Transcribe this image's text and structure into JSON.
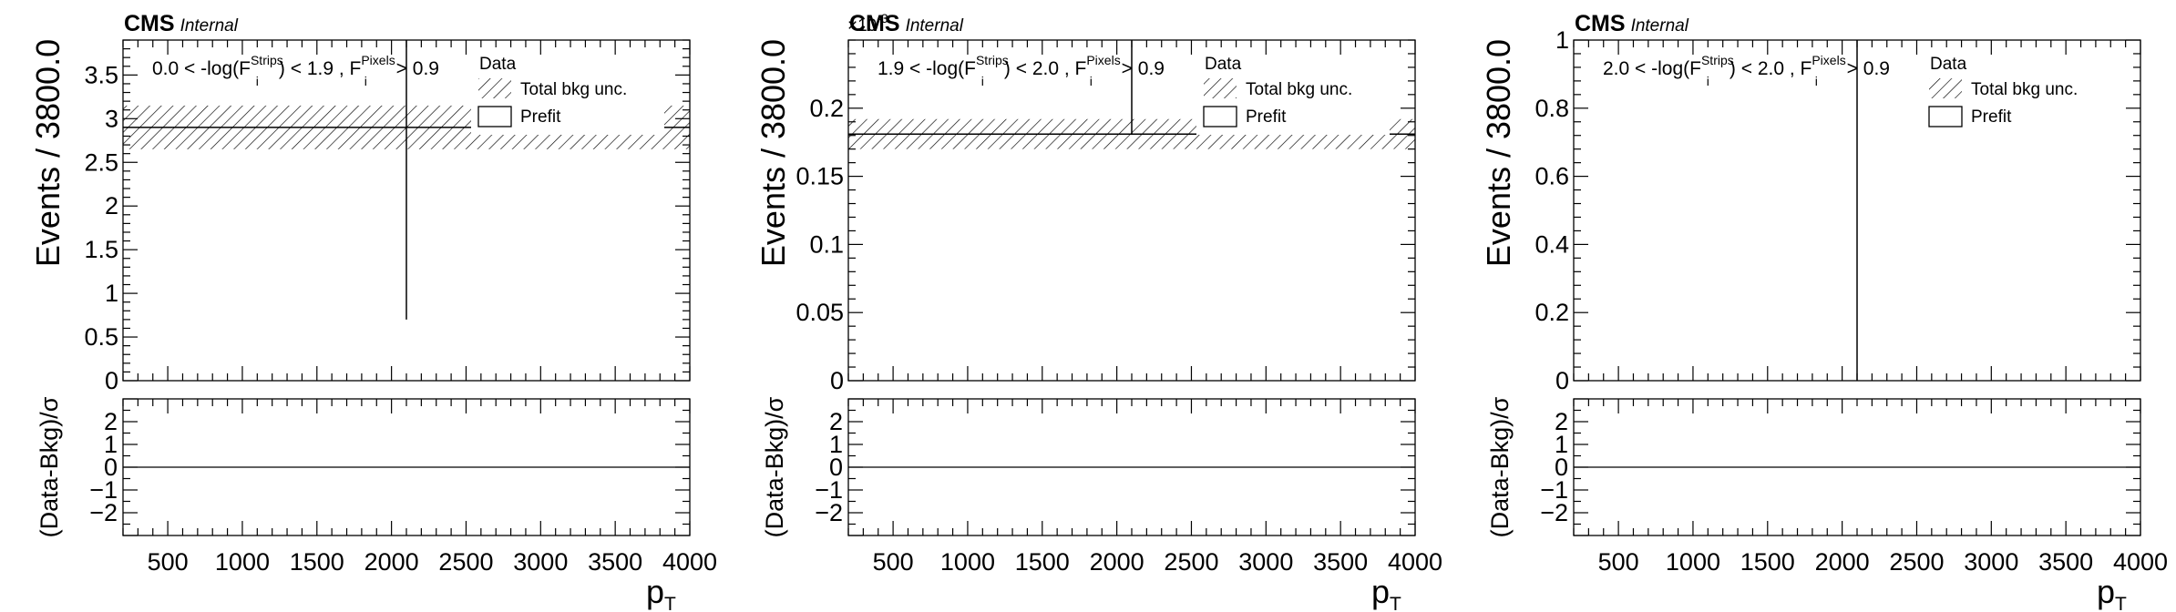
{
  "colors": {
    "axis": "#000000",
    "band_hatch": "#000000",
    "background": "#ffffff"
  },
  "chart_data": [
    {
      "type": "line",
      "experiment": "CMS",
      "experiment_tag": "Internal",
      "selection": {
        "prefix": "0.0 < -log(F",
        "sup1": "Strips",
        "sub1": "i",
        "middle": ") < 1.9 , F",
        "sup2": "Pixels",
        "sub2": "i",
        "suffix": " > 0.9"
      },
      "ylabel": "Events / 3800.0",
      "xlabel": {
        "main": "p",
        "sub": "T"
      },
      "ratio_ylabel": "(Data-Bkg)/σ",
      "exponent_label": "",
      "xlim": [
        200,
        4000
      ],
      "ylim": [
        0,
        3.9
      ],
      "yticks": [
        0,
        0.5,
        1,
        1.5,
        2,
        2.5,
        3,
        3.5
      ],
      "ytick_labels": [
        "0",
        "0.5",
        "1",
        "1.5",
        "2",
        "2.5",
        "3",
        "3.5"
      ],
      "xticks": [
        500,
        1000,
        1500,
        2000,
        2500,
        3000,
        3500,
        4000
      ],
      "xtick_labels": [
        "500",
        "1000",
        "1500",
        "2000",
        "2500",
        "3000",
        "3500",
        "4000"
      ],
      "ratio_ylim": [
        -3,
        3
      ],
      "ratio_yticks": [
        -2,
        -1,
        0,
        1,
        2
      ],
      "ratio_ytick_labels": [
        "−2",
        "−1",
        "0",
        "1",
        "2"
      ],
      "bins": [
        200,
        4000
      ],
      "prefit": [
        2.9
      ],
      "bkg_unc": [
        [
          2.65,
          3.15
        ]
      ],
      "data_x": 2100,
      "data_err": [
        0.7,
        3.9
      ],
      "ratio_values": [
        0
      ],
      "legend": {
        "data": "Data",
        "unc": "Total bkg unc.",
        "prefit": "Prefit",
        "position": "top-right"
      }
    },
    {
      "type": "line",
      "experiment": "CMS",
      "experiment_tag": "Internal",
      "selection": {
        "prefix": "1.9 < -log(F",
        "sup1": "Strips",
        "sub1": "i",
        "middle": ") < 2.0 , F",
        "sup2": "Pixels",
        "sub2": "i",
        "suffix": " > 0.9"
      },
      "ylabel": "Events / 3800.0",
      "xlabel": {
        "main": "p",
        "sub": "T"
      },
      "ratio_ylabel": "(Data-Bkg)/σ",
      "exponent_label": "×10",
      "exponent_power": "-3",
      "xlim": [
        200,
        4000
      ],
      "ylim": [
        0,
        0.25
      ],
      "yticks": [
        0,
        0.05,
        0.1,
        0.15,
        0.2
      ],
      "ytick_labels": [
        "0",
        "0.05",
        "0.1",
        "0.15",
        "0.2"
      ],
      "xticks": [
        500,
        1000,
        1500,
        2000,
        2500,
        3000,
        3500,
        4000
      ],
      "xtick_labels": [
        "500",
        "1000",
        "1500",
        "2000",
        "2500",
        "3000",
        "3500",
        "4000"
      ],
      "ratio_ylim": [
        -3,
        3
      ],
      "ratio_yticks": [
        -2,
        -1,
        0,
        1,
        2
      ],
      "ratio_ytick_labels": [
        "−2",
        "−1",
        "0",
        "1",
        "2"
      ],
      "bins": [
        200,
        4000
      ],
      "prefit": [
        0.181
      ],
      "bkg_unc": [
        [
          0.17,
          0.192
        ]
      ],
      "data_x": 2100,
      "data_err": [
        0.181,
        0.25
      ],
      "ratio_values": [
        0
      ],
      "legend": {
        "data": "Data",
        "unc": "Total bkg unc.",
        "prefit": "Prefit",
        "position": "top-right"
      }
    },
    {
      "type": "line",
      "experiment": "CMS",
      "experiment_tag": "Internal",
      "selection": {
        "prefix": "2.0 < -log(F",
        "sup1": "Strips",
        "sub1": "i",
        "middle": ") < 2.0 , F",
        "sup2": "Pixels",
        "sub2": "i",
        "suffix": " > 0.9"
      },
      "ylabel": "Events / 3800.0",
      "xlabel": {
        "main": "p",
        "sub": "T"
      },
      "ratio_ylabel": "(Data-Bkg)/σ",
      "exponent_label": "",
      "xlim": [
        200,
        4000
      ],
      "ylim": [
        0,
        1
      ],
      "yticks": [
        0,
        0.2,
        0.4,
        0.6,
        0.8,
        1
      ],
      "ytick_labels": [
        "0",
        "0.2",
        "0.4",
        "0.6",
        "0.8",
        "1"
      ],
      "xticks": [
        500,
        1000,
        1500,
        2000,
        2500,
        3000,
        3500,
        4000
      ],
      "xtick_labels": [
        "500",
        "1000",
        "1500",
        "2000",
        "2500",
        "3000",
        "3500",
        "4000"
      ],
      "ratio_ylim": [
        -3,
        3
      ],
      "ratio_yticks": [
        -2,
        -1,
        0,
        1,
        2
      ],
      "ratio_ytick_labels": [
        "−2",
        "−1",
        "0",
        "1",
        "2"
      ],
      "bins": [
        200,
        4000
      ],
      "prefit": [],
      "bkg_unc": [],
      "data_x": 2100,
      "data_err": [
        0,
        1
      ],
      "ratio_values": [
        0
      ],
      "legend": {
        "data": "Data",
        "unc": "Total bkg unc.",
        "prefit": "Prefit",
        "position": "top-right"
      }
    }
  ]
}
